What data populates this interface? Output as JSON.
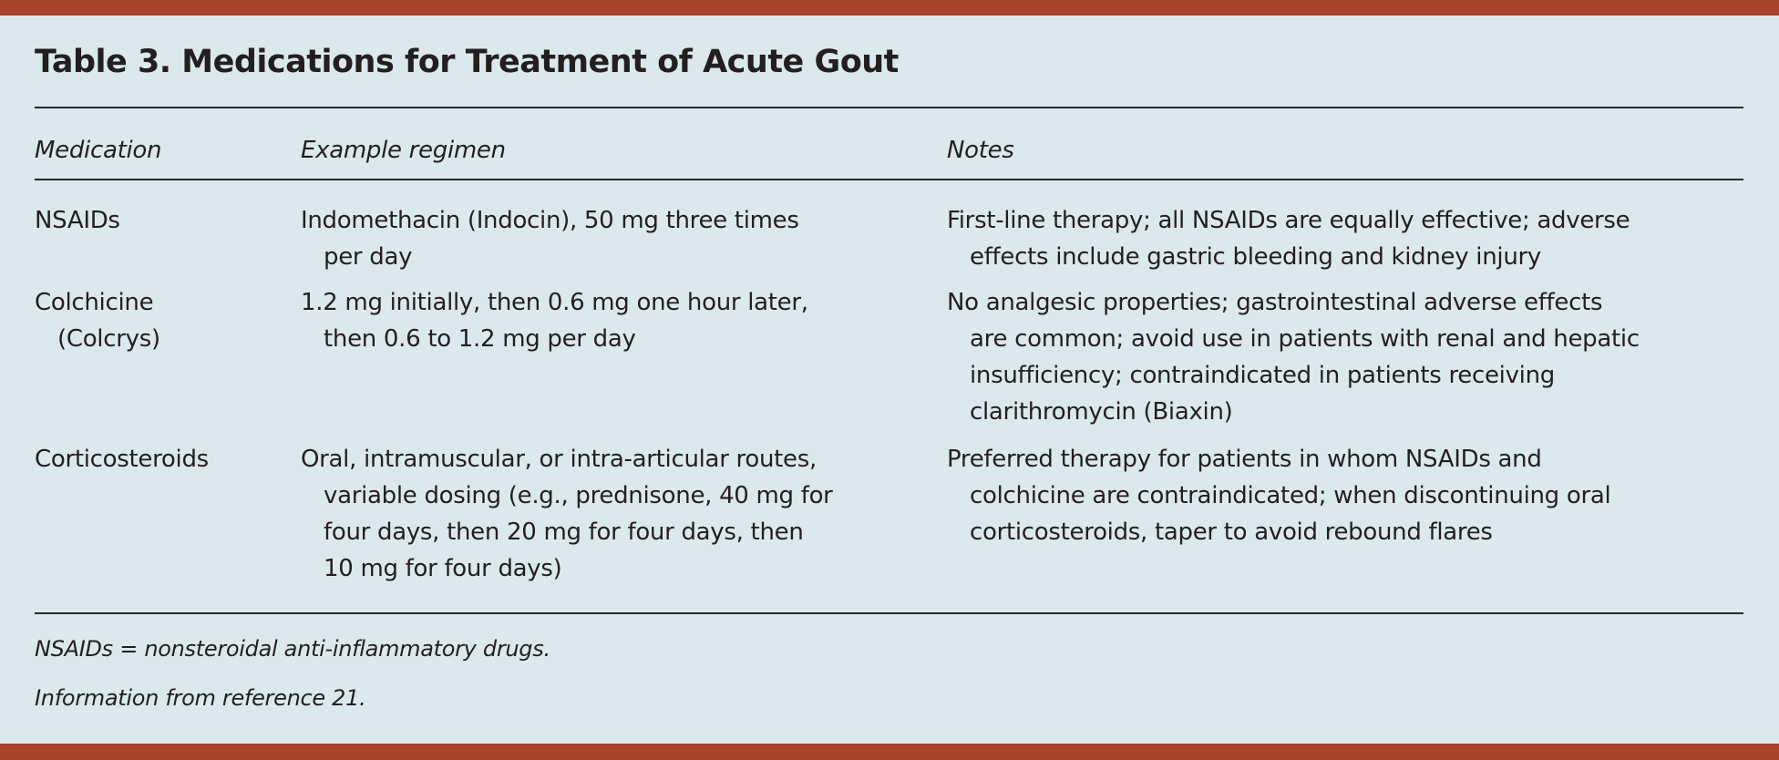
{
  "title": "Table 3. Medications for Treatment of Acute Gout",
  "colors": {
    "accent_bar": "#a8432c",
    "background": "#dbe9ec",
    "text": "#231f20"
  },
  "headers": [
    "Medication",
    "Example regimen",
    "Notes"
  ],
  "rows": [
    {
      "medication": [
        "NSAIDs"
      ],
      "regimen": [
        "Indomethacin (Indocin), 50 mg three times",
        "per day"
      ],
      "notes": [
        "First-line therapy; all NSAIDs are equally effective; adverse",
        "effects include gastric bleeding and kidney injury"
      ]
    },
    {
      "medication": [
        "Colchicine",
        "(Colcrys)"
      ],
      "regimen": [
        "1.2 mg initially, then 0.6 mg one hour later,",
        "then 0.6 to 1.2 mg per day"
      ],
      "notes": [
        "No analgesic properties; gastrointestinal adverse effects",
        "are common; avoid use in patients with renal and hepatic",
        "insufficiency; contraindicated in patients receiving",
        "clarithromycin (Biaxin)"
      ]
    },
    {
      "medication": [
        "Corticosteroids"
      ],
      "regimen": [
        "Oral, intramuscular, or intra-articular routes,",
        "variable dosing (e.g., prednisone, 40 mg for",
        "four days, then 20 mg for four days, then",
        "10 mg for four days)"
      ],
      "notes": [
        "Preferred therapy for patients in whom NSAIDs and",
        "colchicine are contraindicated; when discontinuing oral",
        "corticosteroids, taper to avoid rebound flares"
      ]
    }
  ],
  "footnotes": [
    "NSAIDs = nonsteroidal anti-inflammatory drugs.",
    "Information from reference 21."
  ]
}
